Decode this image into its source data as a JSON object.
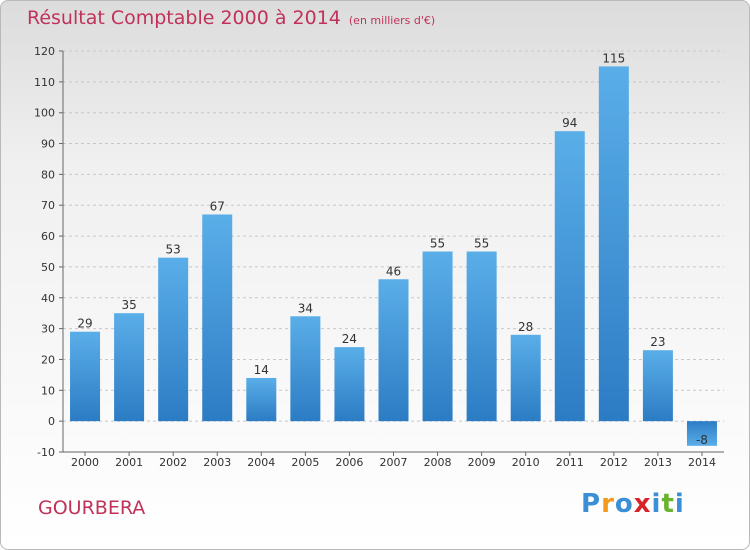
{
  "header": {
    "title": "Résultat Comptable 2000 à 2014",
    "subtitle": "(en milliers d'€)"
  },
  "footer": {
    "commune": "GOURBERA",
    "logo_letters": [
      "P",
      "r",
      "o",
      "x",
      "i",
      "t",
      "i"
    ],
    "logo_colors": [
      "#3a8fd6",
      "#f39a1e",
      "#3a8fd6",
      "#d8232a",
      "#3a8fd6",
      "#6ab42d",
      "#3a8fd6"
    ]
  },
  "colors": {
    "title": "#c0325a",
    "bar": "#3a8fd6"
  },
  "chart_data": {
    "type": "bar",
    "title": "Résultat Comptable 2000 à 2014",
    "categories": [
      "2000",
      "2001",
      "2002",
      "2003",
      "2004",
      "2005",
      "2006",
      "2007",
      "2008",
      "2009",
      "2010",
      "2011",
      "2012",
      "2013",
      "2014"
    ],
    "values": [
      29,
      35,
      53,
      67,
      14,
      34,
      24,
      46,
      55,
      55,
      28,
      94,
      115,
      23,
      -8
    ],
    "ylim": [
      -10,
      120
    ],
    "yticks": [
      -10,
      0,
      10,
      20,
      30,
      40,
      50,
      60,
      70,
      80,
      90,
      100,
      110,
      120
    ],
    "grid": true
  }
}
